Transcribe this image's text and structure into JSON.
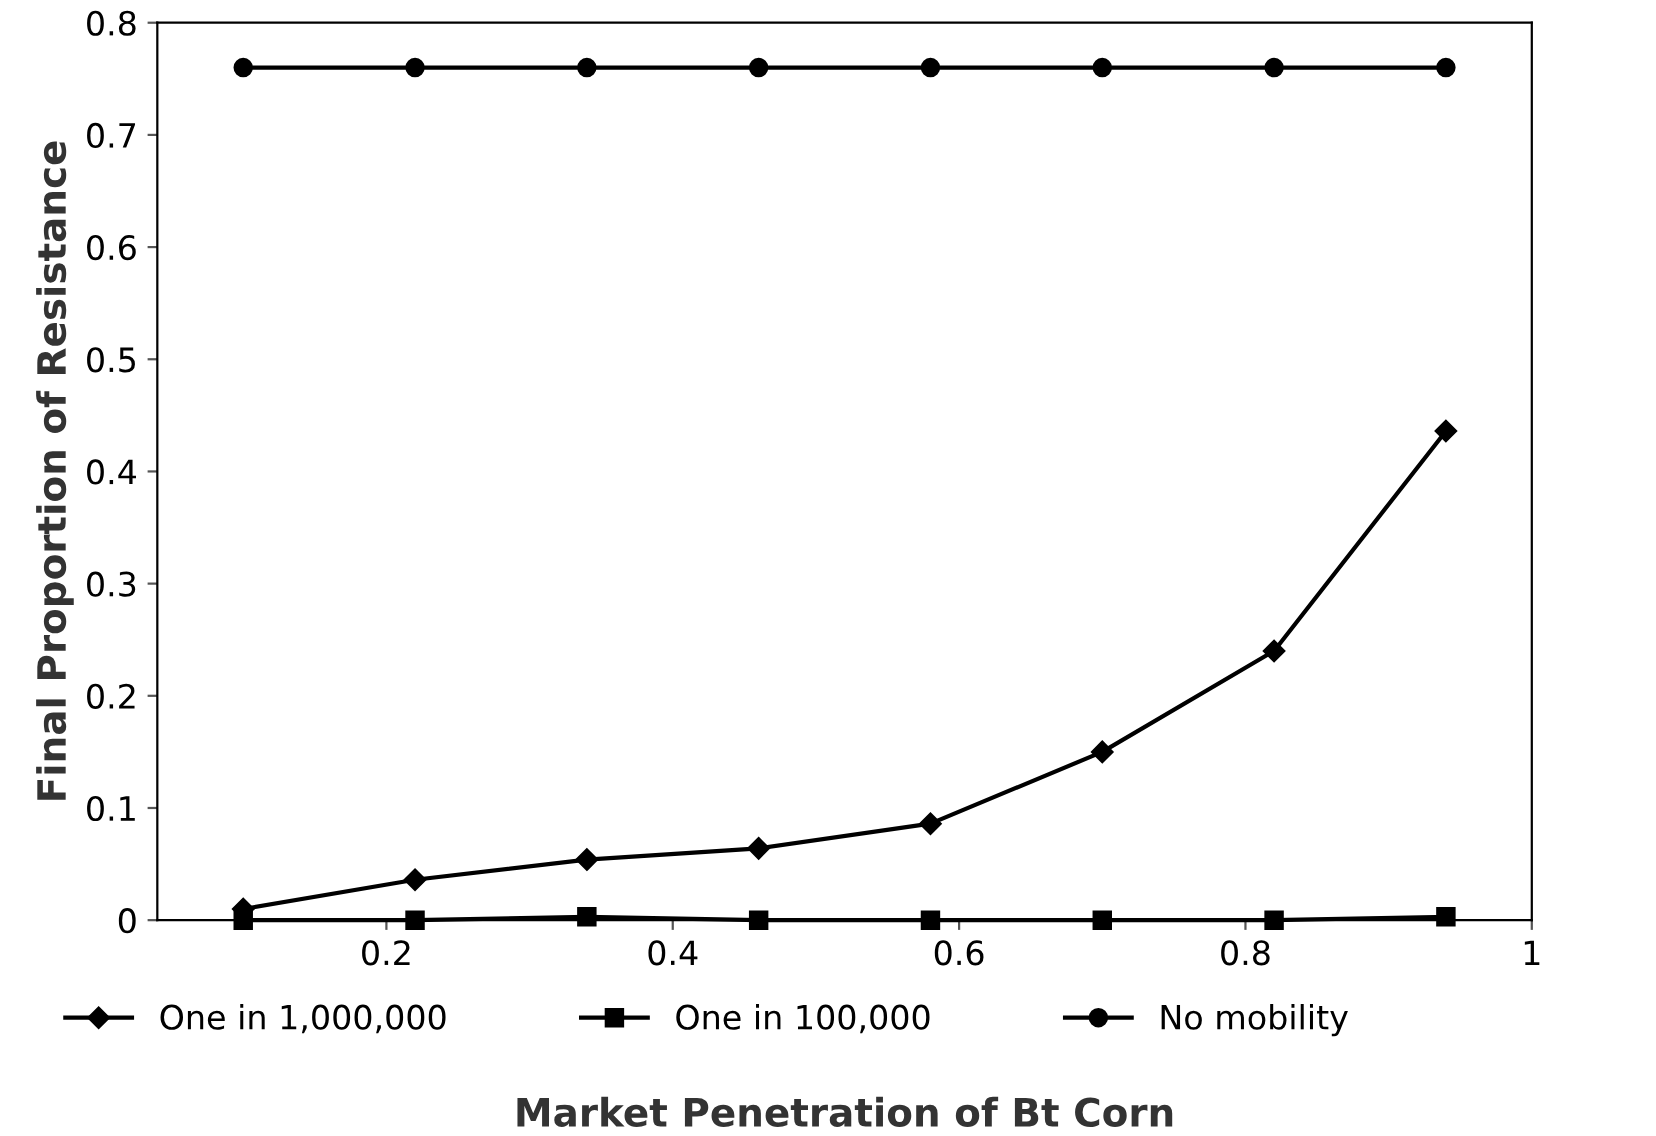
{
  "chart_data": {
    "type": "line",
    "xlabel": "Market Penetration of Bt Corn",
    "ylabel": "Final Proportion of Resistance",
    "x": [
      0.1,
      0.22,
      0.34,
      0.46,
      0.58,
      0.7,
      0.82,
      0.94
    ],
    "series": [
      {
        "name": "One in 1,000,000",
        "color": "#000000",
        "marker": "diamond",
        "values": [
          0.01,
          0.036,
          0.054,
          0.064,
          0.086,
          0.15,
          0.24,
          0.436
        ]
      },
      {
        "name": "One in 100,000",
        "color": "#000000",
        "marker": "square",
        "values": [
          0,
          0,
          0.003,
          0,
          0,
          0,
          0,
          0.003
        ]
      },
      {
        "name": "No mobility",
        "color": "#000000",
        "marker": "circle",
        "values": [
          0.76,
          0.76,
          0.76,
          0.76,
          0.76,
          0.76,
          0.76,
          0.76
        ]
      }
    ],
    "xlim": [
      0.04,
      1
    ],
    "xticks": [
      0.2,
      0.4,
      0.6,
      0.8,
      1
    ],
    "ylim": [
      0,
      0.8
    ],
    "yticks": [
      0,
      0.1,
      0.2,
      0.3,
      0.4,
      0.5,
      0.6,
      0.7,
      0.8
    ],
    "grid": false,
    "legend": "bottom",
    "line_style": "solid"
  }
}
